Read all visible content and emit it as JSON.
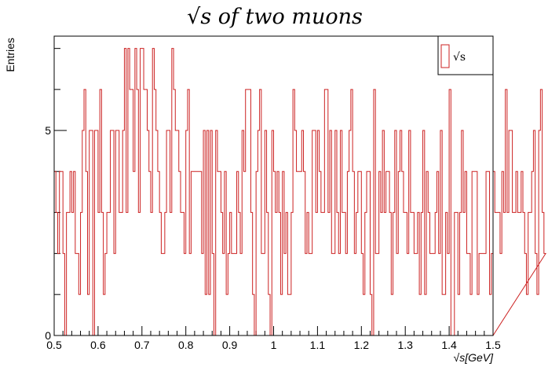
{
  "chart_data": {
    "type": "histogram",
    "title": "√s   of   two   muons",
    "xlabel": "√s[GeV]",
    "ylabel": "Entries",
    "legend": {
      "entry": "√s",
      "placement": "top-right"
    },
    "xlim": [
      0.5,
      1.5
    ],
    "ylim": [
      0,
      7.3
    ],
    "x_ticks": [
      {
        "value": 0.5,
        "label": "0.5"
      },
      {
        "value": 0.6,
        "label": "0.6"
      },
      {
        "value": 0.7,
        "label": "0.7"
      },
      {
        "value": 0.8,
        "label": "0.8"
      },
      {
        "value": 0.9,
        "label": "0.9"
      },
      {
        "value": 1.0,
        "label": "1"
      },
      {
        "value": 1.1,
        "label": "1.1"
      },
      {
        "value": 1.2,
        "label": "1.2"
      },
      {
        "value": 1.3,
        "label": "1.3"
      },
      {
        "value": 1.4,
        "label": "1.4"
      },
      {
        "value": 1.5,
        "label": "1.5"
      }
    ],
    "y_ticks": [
      {
        "value": 0,
        "label": "0"
      },
      {
        "value": 5,
        "label": "5"
      }
    ],
    "line_color": "#cc2222",
    "bin_width": 0.004,
    "counts": [
      4,
      3,
      2,
      4,
      4,
      2,
      0,
      3,
      3,
      4,
      3,
      4,
      2,
      2,
      1,
      3,
      5,
      6,
      4,
      1,
      5,
      5,
      0,
      5,
      5,
      3,
      6,
      3,
      1,
      2,
      3,
      3,
      5,
      5,
      2,
      5,
      5,
      3,
      3,
      5,
      7,
      3,
      7,
      6,
      6,
      4,
      7,
      6,
      3,
      7,
      7,
      6,
      6,
      5,
      4,
      3,
      7,
      6,
      5,
      4,
      3,
      2,
      2,
      3,
      5,
      5,
      3,
      7,
      6,
      5,
      5,
      4,
      3,
      3,
      2,
      5,
      6,
      2,
      4,
      4,
      4,
      4,
      4,
      4,
      2,
      5,
      1,
      5,
      1,
      5,
      2,
      0,
      5,
      4,
      4,
      3,
      2,
      4,
      1,
      2,
      3,
      2,
      2,
      2,
      4,
      3,
      2,
      5,
      4,
      6,
      6,
      6,
      3,
      1,
      0,
      4,
      5,
      6,
      2,
      2,
      5,
      3,
      1,
      0,
      5,
      4,
      3,
      4,
      3,
      1,
      4,
      2,
      3,
      1,
      1,
      3,
      6,
      5,
      4,
      4,
      4,
      5,
      4,
      2,
      3,
      2,
      2,
      5,
      5,
      3,
      5,
      4,
      3,
      3,
      6,
      6,
      3,
      5,
      2,
      2,
      5,
      3,
      2,
      5,
      3,
      3,
      2,
      4,
      5,
      6,
      4,
      2,
      3,
      4,
      4,
      2,
      1,
      3,
      4,
      4,
      1,
      0,
      6,
      2,
      2,
      4,
      3,
      5,
      3,
      4,
      4,
      3,
      1,
      3,
      5,
      2,
      4,
      5,
      4,
      3,
      3,
      2,
      5,
      3,
      3,
      2,
      2,
      3,
      1,
      3,
      5,
      1,
      4,
      3,
      2,
      2,
      2,
      3,
      4,
      2,
      5,
      1,
      1,
      3,
      2,
      6,
      0,
      0,
      3,
      3,
      1,
      3,
      5,
      3,
      4,
      2,
      2,
      1,
      4,
      4,
      4,
      1,
      2,
      2,
      2,
      2,
      4,
      4,
      1,
      2,
      4,
      3,
      3,
      3,
      2,
      4,
      3,
      6,
      3,
      5,
      5,
      3,
      3,
      4,
      3,
      3,
      4,
      3,
      2,
      1,
      3,
      3,
      4,
      5,
      2,
      1,
      5,
      6,
      3,
      2
    ]
  }
}
